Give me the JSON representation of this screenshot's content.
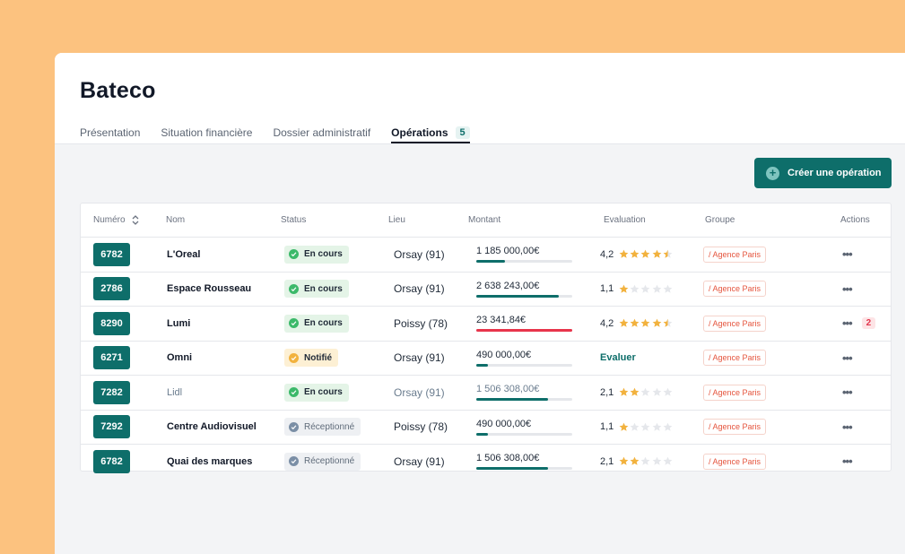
{
  "app_title": "Bateco",
  "tabs": [
    {
      "label": "Présentation",
      "active": false
    },
    {
      "label": "Situation financière",
      "active": false
    },
    {
      "label": "Dossier administratif",
      "active": false
    },
    {
      "label": "Opérations",
      "active": true,
      "badge": "5"
    }
  ],
  "create_button": {
    "label": "Créer une opération",
    "icon": "plus-circle-icon"
  },
  "table": {
    "headers": {
      "numero": "Numéro",
      "nom": "Nom",
      "status": "Status",
      "lieu": "Lieu",
      "montant": "Montant",
      "evaluation": "Evaluation",
      "groupe": "Groupe",
      "actions": "Actions"
    },
    "rows": [
      {
        "numero": "6782",
        "nom": "L'Oreal",
        "status": "En cours",
        "status_type": "encours",
        "lieu": "Orsay (91)",
        "montant": "1 185 000,00€",
        "progress": 0.3,
        "bar_color": "#0e6e6a",
        "eval_score": "4,2",
        "stars": 4.5,
        "groupe": "/ Agence Paris",
        "muted": false
      },
      {
        "numero": "2786",
        "nom": "Espace Rousseau",
        "status": "En cours",
        "status_type": "encours",
        "lieu": "Orsay (91)",
        "montant": "2 638 243,00€",
        "progress": 0.86,
        "bar_color": "#0e6e6a",
        "eval_score": "1,1",
        "stars": 1,
        "groupe": "/ Agence Paris",
        "muted": false
      },
      {
        "numero": "8290",
        "nom": "Lumi",
        "status": "En cours",
        "status_type": "encours",
        "lieu": "Poissy (78)",
        "montant": "23 341,84€",
        "progress": 1.0,
        "bar_color": "#e8354b",
        "eval_score": "4,2",
        "stars": 4.5,
        "groupe": "/ Agence Paris",
        "muted": false,
        "count": "2"
      },
      {
        "numero": "6271",
        "nom": "Omni",
        "status": "Notifié",
        "status_type": "notifie",
        "lieu": "Orsay (91)",
        "montant": "490 000,00€",
        "progress": 0.12,
        "bar_color": "#0e6e6a",
        "evaluer": "Evaluer",
        "groupe": "/ Agence Paris",
        "muted": false
      },
      {
        "numero": "7282",
        "nom": "Lidl",
        "status": "En cours",
        "status_type": "encours",
        "lieu": "Orsay (91)",
        "montant": "1 506 308,00€",
        "progress": 0.75,
        "bar_color": "#0e6e6a",
        "eval_score": "2,1",
        "stars": 2,
        "groupe": "/ Agence Paris",
        "muted": true
      },
      {
        "numero": "7292",
        "nom": "Centre Audiovisuel",
        "status": "Réceptionné",
        "status_type": "recep",
        "lieu": "Poissy (78)",
        "montant": "490 000,00€",
        "progress": 0.12,
        "bar_color": "#0e6e6a",
        "eval_score": "1,1",
        "stars": 1,
        "groupe": "/ Agence Paris",
        "muted": false
      },
      {
        "numero": "6782",
        "nom": "Quai des marques",
        "status": "Réceptionné",
        "status_type": "recep",
        "lieu": "Orsay (91)",
        "montant": "1 506 308,00€",
        "progress": 0.75,
        "bar_color": "#0e6e6a",
        "eval_score": "2,1",
        "stars": 2,
        "groupe": "/ Agence Paris",
        "muted": false
      }
    ]
  },
  "colors": {
    "brand": "#0e6e6a",
    "background": "#FCC27F",
    "star": "#f2b23e",
    "star_empty": "#e5e7eb",
    "alert": "#e8354b"
  }
}
